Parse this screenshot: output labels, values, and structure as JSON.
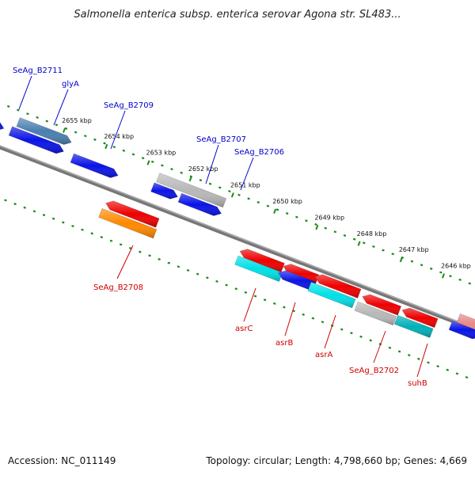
{
  "title": "Salmonella enterica subsp. enterica serovar Agona str. SL483...",
  "footer": {
    "accession": "Accession: NC_011149",
    "summary": "Topology: circular; Length: 4,798,660 bp; Genes: 4,669"
  },
  "colors": {
    "forward_label": "#0000cc",
    "reverse_label": "#cc0000",
    "ruler": "#1a8a1a",
    "backbone": "#777777",
    "gene_blue": "#0a14e6",
    "gene_steel": "#4a7fb0",
    "gene_red": "#ee0000",
    "gene_orange": "#ff8800",
    "gene_cyan": "#00e0e6",
    "gene_teal": "#00b0b8",
    "gene_gray": "#b8b8b8",
    "gene_pink": "#e88888"
  },
  "kbp_ticks": [
    {
      "label": "2655 kbp",
      "pos": 2655
    },
    {
      "label": "2654 kbp",
      "pos": 2654
    },
    {
      "label": "2653 kbp",
      "pos": 2653
    },
    {
      "label": "2652 kbp",
      "pos": 2652
    },
    {
      "label": "2651 kbp",
      "pos": 2651
    },
    {
      "label": "2650 kbp",
      "pos": 2650
    },
    {
      "label": "2649 kbp",
      "pos": 2649
    },
    {
      "label": "2648 kbp",
      "pos": 2648
    },
    {
      "label": "2647 kbp",
      "pos": 2647
    },
    {
      "label": "2646 kbp",
      "pos": 2646
    }
  ],
  "forward_labels": [
    {
      "text": "SeAg_B2711"
    },
    {
      "text": "glyA"
    },
    {
      "text": "SeAg_B2709"
    },
    {
      "text": "SeAg_B2707"
    },
    {
      "text": "SeAg_B2706"
    }
  ],
  "reverse_labels": [
    {
      "text": "SeAg_B2708"
    },
    {
      "text": "asrC"
    },
    {
      "text": "asrB"
    },
    {
      "text": "asrA"
    },
    {
      "text": "SeAg_B2702"
    },
    {
      "text": "suhB"
    }
  ]
}
